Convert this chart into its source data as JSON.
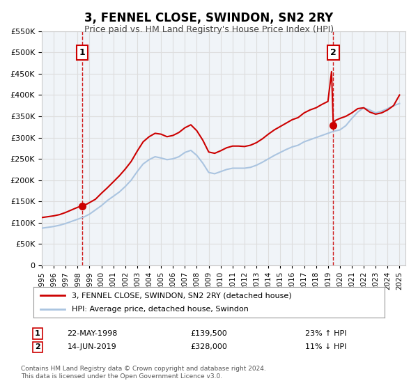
{
  "title": "3, FENNEL CLOSE, SWINDON, SN2 2RY",
  "subtitle": "Price paid vs. HM Land Registry's House Price Index (HPI)",
  "legend_line1": "3, FENNEL CLOSE, SWINDON, SN2 2RY (detached house)",
  "legend_line2": "HPI: Average price, detached house, Swindon",
  "sale1_label": "1",
  "sale1_date": "22-MAY-1998",
  "sale1_price": "£139,500",
  "sale1_hpi": "23% ↑ HPI",
  "sale1_year": 1998.38,
  "sale1_value": 139500,
  "sale2_label": "2",
  "sale2_date": "14-JUN-2019",
  "sale2_price": "£328,000",
  "sale2_hpi": "11% ↓ HPI",
  "sale2_year": 2019.45,
  "sale2_value": 328000,
  "footnote1": "Contains HM Land Registry data © Crown copyright and database right 2024.",
  "footnote2": "This data is licensed under the Open Government Licence v3.0.",
  "hpi_line_color": "#aac4e0",
  "price_line_color": "#cc0000",
  "marker_color": "#cc0000",
  "vline_color": "#cc0000",
  "grid_color": "#dddddd",
  "background_color": "#ffffff",
  "ylim": [
    0,
    550000
  ],
  "xlim_start": 1995.0,
  "xlim_end": 2025.5
}
